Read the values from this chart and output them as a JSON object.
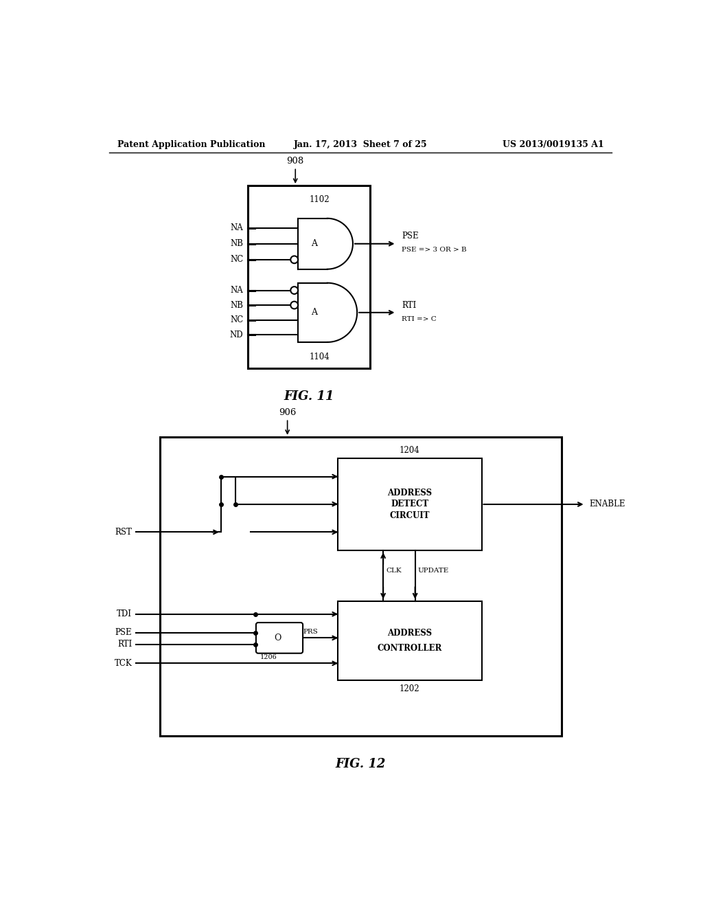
{
  "bg_color": "#ffffff",
  "header": {
    "left": "Patent Application Publication",
    "center": "Jan. 17, 2013  Sheet 7 of 25",
    "right": "US 2013/0019135 A1"
  },
  "fig11": {
    "label": "FIG. 11",
    "ref": "908",
    "box_label1": "1102",
    "box_label2": "1104",
    "gate1_inputs": [
      "NA",
      "NB",
      "NC"
    ],
    "gate2_inputs": [
      "NA",
      "NB",
      "NC",
      "ND"
    ],
    "gate1_out": "PSE",
    "gate1_desc": "PSE => 3 OR > B",
    "gate2_out": "RTI",
    "gate2_desc": "RTI => C"
  },
  "fig12": {
    "label": "FIG. 12",
    "ref": "906",
    "adc_lines": [
      "ADDRESS",
      "DETECT",
      "CIRCUIT"
    ],
    "adc_ref": "1204",
    "ctrl_lines": [
      "ADDRESS",
      "CONTROLLER"
    ],
    "ctrl_ref": "1202",
    "or_ref": "1206",
    "prs": "PRS",
    "clk": "CLK",
    "update": "UPDATE",
    "enable": "ENABLE",
    "inputs": [
      "RST",
      "TDI",
      "PSE",
      "RTI",
      "TCK"
    ]
  }
}
